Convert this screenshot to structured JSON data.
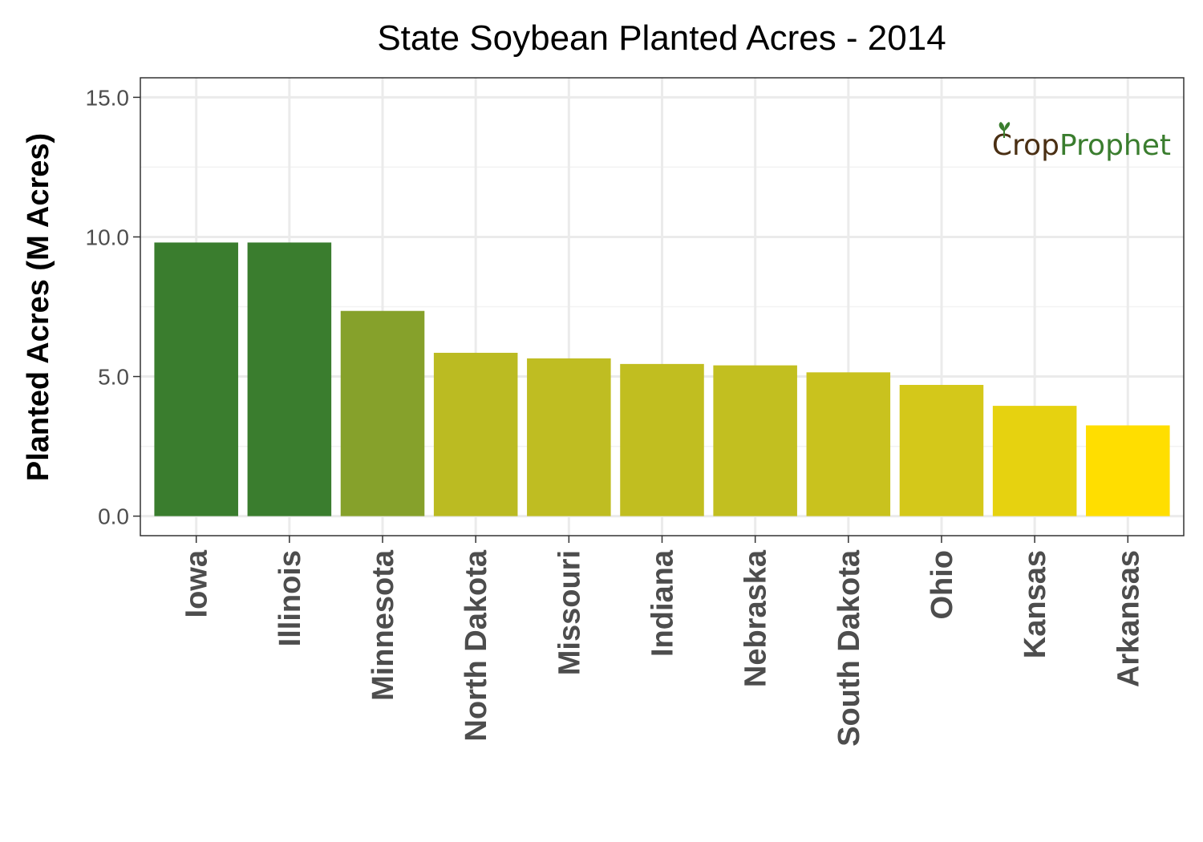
{
  "chart_data": {
    "type": "bar",
    "title": "State Soybean Planted Acres - 2014",
    "xlabel": "",
    "ylabel": "Planted Acres (M Acres)",
    "ylim": [
      -0.7,
      15.7
    ],
    "yticks": [
      0,
      5,
      10,
      15
    ],
    "ytick_labels": [
      "0.0",
      "5.0",
      "10.0",
      "15.0"
    ],
    "categories": [
      "Iowa",
      "Illinois",
      "Minnesota",
      "North Dakota",
      "Missouri",
      "Indiana",
      "Nebraska",
      "South Dakota",
      "Ohio",
      "Kansas",
      "Arkansas"
    ],
    "values": [
      9.8,
      9.8,
      7.35,
      5.85,
      5.65,
      5.45,
      5.4,
      5.15,
      4.7,
      3.95,
      3.25
    ],
    "colors": [
      "#3a7d2e",
      "#3a7d2e",
      "#86a12b",
      "#bbbb22",
      "#bfbd22",
      "#c1be20",
      "#c2bf20",
      "#c9c21e",
      "#d4c81a",
      "#e6d210",
      "#ffde00"
    ],
    "grid": true,
    "legend": "none"
  },
  "logo": {
    "part1": "Cr",
    "part2": "o",
    "part3": "p",
    "part4": "Prophet",
    "color_dark": "#4a2f13",
    "color_green": "#3a7d2e"
  }
}
